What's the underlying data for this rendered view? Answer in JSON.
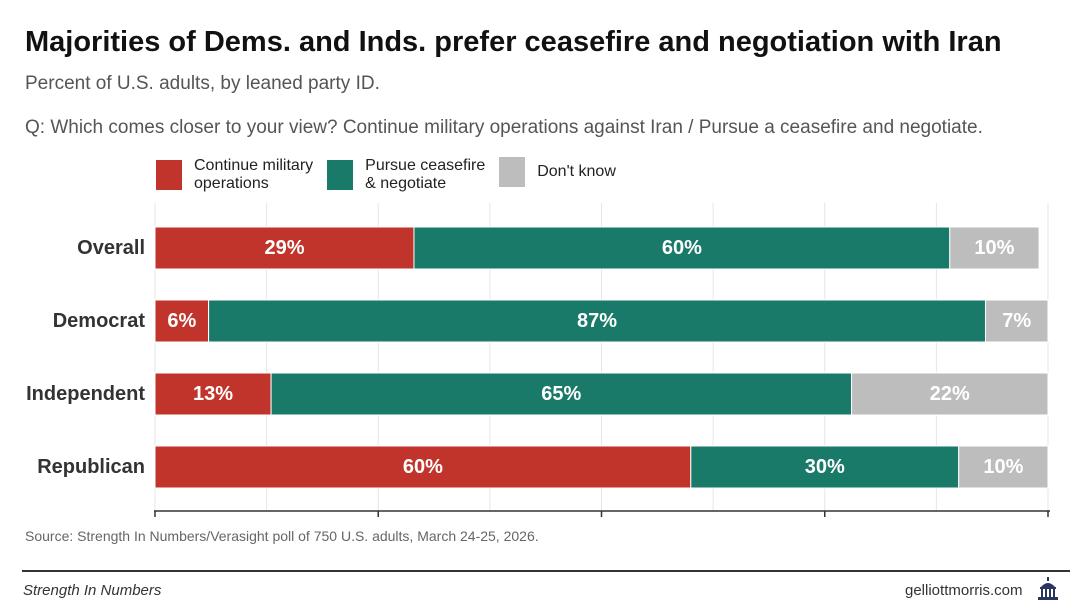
{
  "title": "Majorities of Dems. and Inds. prefer ceasefire and negotiation with Iran",
  "subtitle": "Percent of U.S. adults, by leaned party ID.",
  "question": "Q: Which comes closer to your view? Continue military operations against Iran / Pursue a ceasefire and negotiate.",
  "legend": [
    {
      "label": "Continue military\noperations",
      "color": "#c0342b"
    },
    {
      "label": "Pursue ceasefire\n& negotiate",
      "color": "#1a7a6a"
    },
    {
      "label": "Don't know",
      "color": "#bdbdbd"
    }
  ],
  "chart_data": {
    "type": "bar",
    "orientation": "horizontal",
    "stacked": true,
    "categories": [
      "Overall",
      "Democrat",
      "Independent",
      "Republican"
    ],
    "series": [
      {
        "name": "Continue military operations",
        "values": [
          29,
          6,
          13,
          60
        ],
        "labels": [
          "29%",
          "6%",
          "13%",
          "60%"
        ],
        "color": "#c0342b"
      },
      {
        "name": "Pursue ceasefire & negotiate",
        "values": [
          60,
          87,
          65,
          30
        ],
        "labels": [
          "60%",
          "87%",
          "65%",
          "30%"
        ],
        "color": "#1a7a6a"
      },
      {
        "name": "Don't know",
        "values": [
          10,
          7,
          22,
          10
        ],
        "labels": [
          "10%",
          "7%",
          "22%",
          "10%"
        ],
        "color": "#bdbdbd"
      }
    ],
    "xlim": [
      0,
      100
    ],
    "grid": true,
    "legend_position": "top"
  },
  "source": "Source: Strength In Numbers/Verasight poll of 750 U.S. adults, March 24-25, 2026.",
  "footer": {
    "left": "Strength In Numbers",
    "right": "gelliottmorris.com",
    "logo_icon": "capitol-building-icon"
  }
}
